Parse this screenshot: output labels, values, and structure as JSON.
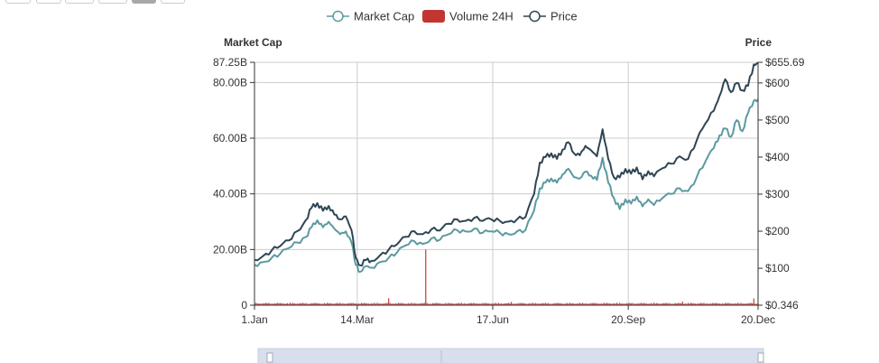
{
  "colors": {
    "market_cap": "#5b9aa0",
    "volume": "#c23531",
    "price": "#2f4554",
    "grid": "#cccccc",
    "axis": "#333333",
    "zoom_fill": "#d7dfee",
    "zoom_border": "#c9cfdd"
  },
  "range_buttons": [
    {
      "active": false
    },
    {
      "active": false
    },
    {
      "active": false
    },
    {
      "active": false
    },
    {
      "active": true
    },
    {
      "active": false
    }
  ],
  "chart_data": {
    "type": "line",
    "title": "",
    "legend": {
      "placement": "top-center",
      "items": [
        {
          "name": "Market Cap",
          "symbol": "line-circle"
        },
        {
          "name": "Volume 24H",
          "symbol": "rect"
        },
        {
          "name": "Price",
          "symbol": "line-circle"
        }
      ]
    },
    "x_axis": {
      "type": "date",
      "ticks": [
        "1.Jan",
        "14.Mar",
        "17.Jun",
        "20.Sep",
        "20.Dec"
      ],
      "tick_days": [
        0,
        72,
        167,
        262,
        353
      ],
      "range_days": [
        0,
        353
      ]
    },
    "y_left": {
      "name": "Market Cap",
      "ticks": [
        "0",
        "20.00B",
        "40.00B",
        "60.00B",
        "80.00B",
        "87.25B"
      ],
      "tick_values": [
        0,
        20,
        40,
        60,
        80,
        87.25
      ],
      "range": [
        0,
        87.25
      ],
      "unit": "B"
    },
    "y_right": {
      "name": "Price",
      "ticks": [
        "$0.346",
        "$100",
        "$200",
        "$300",
        "$400",
        "$500",
        "$600",
        "$655.69"
      ],
      "tick_values": [
        0.346,
        100,
        200,
        300,
        400,
        500,
        600,
        655.69
      ],
      "range": [
        0.346,
        655.69
      ]
    },
    "grid": true,
    "series": [
      {
        "name": "Market Cap",
        "axis": "left",
        "points": [
          [
            0,
            14.5
          ],
          [
            6,
            15.5
          ],
          [
            12,
            17.0
          ],
          [
            18,
            18.5
          ],
          [
            24,
            20.5
          ],
          [
            30,
            22.5
          ],
          [
            36,
            24.5
          ],
          [
            40,
            28.0
          ],
          [
            44,
            30.5
          ],
          [
            48,
            28.0
          ],
          [
            52,
            30.0
          ],
          [
            56,
            27.5
          ],
          [
            60,
            25.5
          ],
          [
            64,
            26.5
          ],
          [
            68,
            22.5
          ],
          [
            71,
            14.5
          ],
          [
            74,
            12.0
          ],
          [
            78,
            14.0
          ],
          [
            82,
            13.5
          ],
          [
            88,
            15.5
          ],
          [
            94,
            17.0
          ],
          [
            100,
            19.0
          ],
          [
            106,
            21.5
          ],
          [
            112,
            23.0
          ],
          [
            118,
            22.0
          ],
          [
            124,
            24.0
          ],
          [
            130,
            23.5
          ],
          [
            136,
            25.5
          ],
          [
            142,
            27.0
          ],
          [
            148,
            26.5
          ],
          [
            154,
            27.5
          ],
          [
            160,
            26.0
          ],
          [
            166,
            26.5
          ],
          [
            172,
            26.0
          ],
          [
            178,
            25.5
          ],
          [
            184,
            26.5
          ],
          [
            190,
            27.0
          ],
          [
            196,
            34.0
          ],
          [
            200,
            42.0
          ],
          [
            204,
            44.0
          ],
          [
            208,
            45.5
          ],
          [
            212,
            44.0
          ],
          [
            216,
            47.0
          ],
          [
            220,
            49.0
          ],
          [
            224,
            46.0
          ],
          [
            228,
            45.5
          ],
          [
            232,
            48.0
          ],
          [
            236,
            46.5
          ],
          [
            240,
            45.0
          ],
          [
            244,
            53.0
          ],
          [
            248,
            44.0
          ],
          [
            252,
            38.5
          ],
          [
            256,
            34.5
          ],
          [
            260,
            38.0
          ],
          [
            264,
            36.5
          ],
          [
            268,
            39.0
          ],
          [
            272,
            35.5
          ],
          [
            276,
            38.0
          ],
          [
            280,
            36.0
          ],
          [
            286,
            38.5
          ],
          [
            292,
            40.0
          ],
          [
            298,
            42.0
          ],
          [
            304,
            41.0
          ],
          [
            310,
            46.0
          ],
          [
            316,
            51.5
          ],
          [
            322,
            56.5
          ],
          [
            326,
            61.0
          ],
          [
            330,
            63.5
          ],
          [
            334,
            60.5
          ],
          [
            338,
            66.5
          ],
          [
            342,
            62.5
          ],
          [
            346,
            69.0
          ],
          [
            350,
            73.5
          ],
          [
            353,
            74.0
          ]
        ]
      },
      {
        "name": "Price",
        "axis": "right",
        "points": [
          [
            0,
            123
          ],
          [
            6,
            133
          ],
          [
            12,
            148
          ],
          [
            18,
            160
          ],
          [
            24,
            175
          ],
          [
            30,
            200
          ],
          [
            36,
            230
          ],
          [
            40,
            263
          ],
          [
            44,
            276
          ],
          [
            48,
            255
          ],
          [
            52,
            268
          ],
          [
            56,
            245
          ],
          [
            60,
            232
          ],
          [
            64,
            240
          ],
          [
            68,
            203
          ],
          [
            71,
            128
          ],
          [
            74,
            108
          ],
          [
            78,
            122
          ],
          [
            82,
            120
          ],
          [
            88,
            135
          ],
          [
            94,
            150
          ],
          [
            100,
            165
          ],
          [
            106,
            185
          ],
          [
            112,
            200
          ],
          [
            118,
            192
          ],
          [
            124,
            205
          ],
          [
            130,
            202
          ],
          [
            136,
            220
          ],
          [
            142,
            232
          ],
          [
            148,
            228
          ],
          [
            154,
            236
          ],
          [
            160,
            228
          ],
          [
            166,
            232
          ],
          [
            172,
            228
          ],
          [
            178,
            226
          ],
          [
            184,
            232
          ],
          [
            190,
            238
          ],
          [
            196,
            300
          ],
          [
            200,
            385
          ],
          [
            204,
            400
          ],
          [
            208,
            410
          ],
          [
            212,
            395
          ],
          [
            216,
            420
          ],
          [
            220,
            440
          ],
          [
            224,
            410
          ],
          [
            228,
            405
          ],
          [
            232,
            430
          ],
          [
            236,
            418
          ],
          [
            240,
            402
          ],
          [
            244,
            475
          ],
          [
            248,
            395
          ],
          [
            252,
            345
          ],
          [
            256,
            345
          ],
          [
            260,
            368
          ],
          [
            264,
            355
          ],
          [
            268,
            372
          ],
          [
            272,
            340
          ],
          [
            276,
            362
          ],
          [
            280,
            348
          ],
          [
            286,
            370
          ],
          [
            292,
            382
          ],
          [
            298,
            402
          ],
          [
            304,
            395
          ],
          [
            310,
            445
          ],
          [
            316,
            490
          ],
          [
            322,
            525
          ],
          [
            326,
            565
          ],
          [
            330,
            610
          ],
          [
            334,
            575
          ],
          [
            338,
            600
          ],
          [
            342,
            580
          ],
          [
            346,
            592
          ],
          [
            350,
            650
          ],
          [
            353,
            655
          ]
        ]
      },
      {
        "name": "Volume 24H",
        "axis": "left",
        "type": "bar",
        "base_level": 0.9,
        "spikes": [
          [
            94,
            2.5
          ],
          [
            120,
            20.0
          ],
          [
            180,
            1.2
          ],
          [
            300,
            1.3
          ],
          [
            350,
            2.4
          ]
        ]
      }
    ]
  }
}
